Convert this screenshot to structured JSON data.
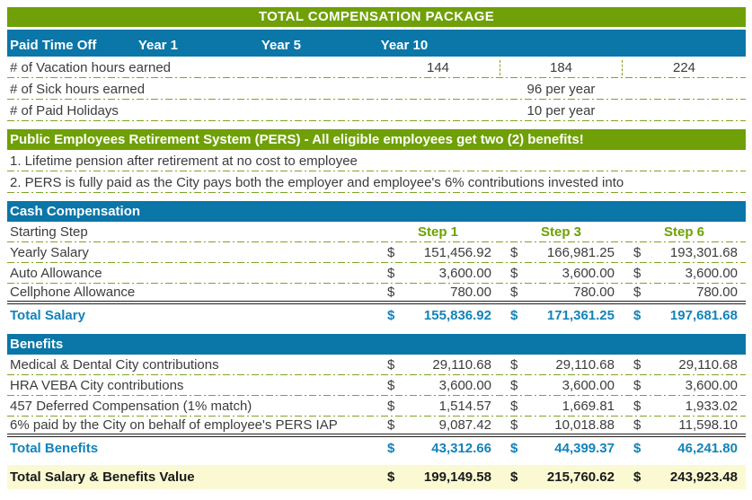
{
  "currency": "$",
  "title": "TOTAL COMPENSATION PACKAGE",
  "colors": {
    "green": "#6FA007",
    "blue": "#0B76A8",
    "teal": "#1283B9",
    "dash_green": "#7FA421",
    "total_row_yellow": "#FAF9D2"
  },
  "pto": {
    "header": "Paid Time Off",
    "columns": [
      "Year 1",
      "Year 5",
      "Year 10"
    ],
    "vacation": {
      "label": "# of Vacation hours earned",
      "values": [
        "144",
        "184",
        "224"
      ]
    },
    "sick": {
      "label": "# of Sick hours earned",
      "value": "96 per year"
    },
    "holidays": {
      "label": "# of Paid Holidays",
      "value": "10 per year"
    }
  },
  "pers": {
    "header": "Public Employees Retirement System (PERS) - All eligible employees get two (2) benefits!",
    "items": [
      "1. Lifetime pension after retirement at no cost to employee",
      "2.  PERS is fully paid as the City pays both the employer and employee's 6% contributions invested into"
    ]
  },
  "cash": {
    "header": "Cash Compensation",
    "starting_step_label": "Starting Step",
    "steps": [
      "Step 1",
      "Step 3",
      "Step 6"
    ],
    "rows": [
      {
        "label": "Yearly Salary",
        "values": [
          "151,456.92",
          "166,981.25",
          "193,301.68"
        ]
      },
      {
        "label": "Auto Allowance",
        "values": [
          "3,600.00",
          "3,600.00",
          "3,600.00"
        ]
      },
      {
        "label": "Cellphone Allowance",
        "values": [
          "780.00",
          "780.00",
          "780.00"
        ]
      }
    ],
    "total": {
      "label": "Total Salary",
      "values": [
        "155,836.92",
        "171,361.25",
        "197,681.68"
      ]
    }
  },
  "benefits": {
    "header": "Benefits",
    "rows": [
      {
        "label": "Medical & Dental City contributions",
        "values": [
          "29,110.68",
          "29,110.68",
          "29,110.68"
        ]
      },
      {
        "label": "HRA VEBA City contributions",
        "values": [
          "3,600.00",
          "3,600.00",
          "3,600.00"
        ]
      },
      {
        "label": "457 Deferred Compensation (1% match)",
        "values": [
          "1,514.57",
          "1,669.81",
          "1,933.02"
        ]
      },
      {
        "label": "6% paid by the City on behalf of employee's PERS IAP",
        "values": [
          "9,087.42",
          "10,018.88",
          "11,598.10"
        ]
      }
    ],
    "total": {
      "label": "Total Benefits",
      "values": [
        "43,312.66",
        "44,399.37",
        "46,241.80"
      ]
    }
  },
  "grand_total": {
    "label": "Total Salary & Benefits Value",
    "values": [
      "199,149.58",
      "215,760.62",
      "243,923.48"
    ]
  }
}
